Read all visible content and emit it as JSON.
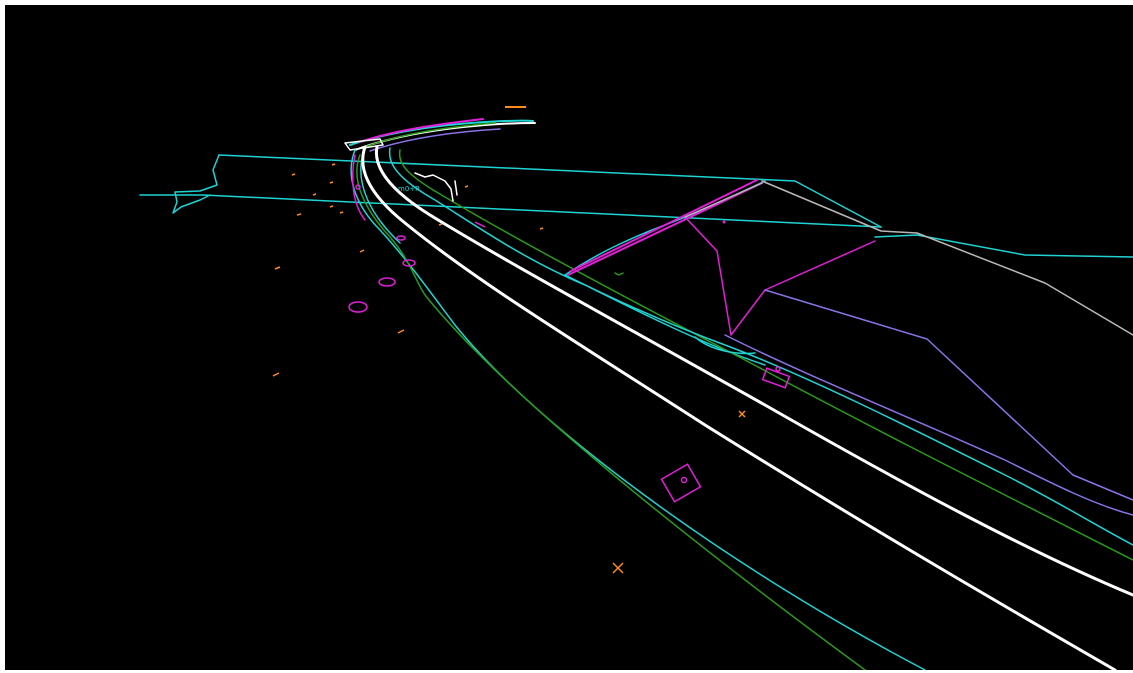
{
  "viewport": {
    "background": "#000000",
    "frame_color": "#ffffff"
  },
  "colors": {
    "cyan": "#1fd3d3",
    "white": "#ffffff",
    "green": "#2a9a1a",
    "magenta": "#e21fd8",
    "purple": "#8a72e6",
    "gray": "#b8b8b8",
    "orange": "#ff8c1a"
  },
  "labels": {
    "small_text": "m0+R"
  }
}
